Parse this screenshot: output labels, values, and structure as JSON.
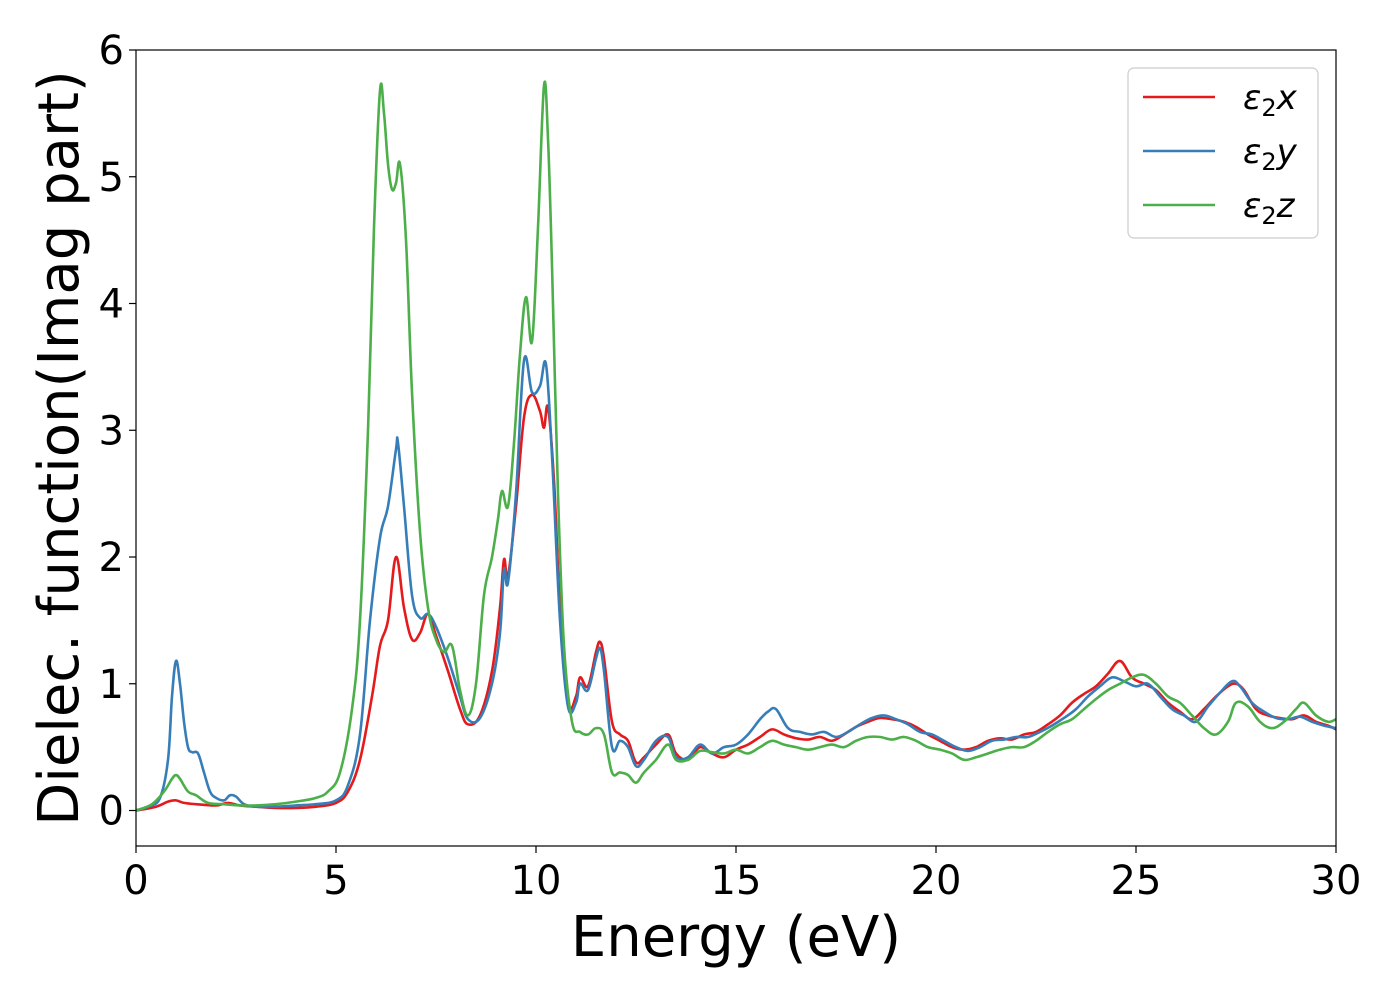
{
  "chart_data": {
    "type": "line",
    "title": "",
    "xlabel": "Energy (eV)",
    "ylabel": "Dielec. function(Imag part)",
    "xlim": [
      0,
      30
    ],
    "ylim": [
      -0.28,
      6.0
    ],
    "xticks": [
      0,
      5,
      10,
      15,
      20,
      25,
      30
    ],
    "yticks": [
      0,
      1,
      2,
      3,
      4,
      5,
      6
    ],
    "xtick_labels": [
      "0",
      "5",
      "10",
      "15",
      "20",
      "25",
      "30"
    ],
    "ytick_labels": [
      "0",
      "1",
      "2",
      "3",
      "4",
      "5",
      "6"
    ],
    "grid": false,
    "legend": {
      "position": "top-right"
    },
    "series": [
      {
        "name": "ε₂x",
        "name_base": "ε",
        "name_sub": "2",
        "name_var": "x",
        "color": "#e41a1c",
        "x": [
          0,
          0.5,
          0.8,
          1.0,
          1.2,
          1.5,
          2.0,
          2.3,
          2.6,
          3.0,
          3.5,
          4.0,
          4.5,
          5.0,
          5.3,
          5.6,
          5.9,
          6.1,
          6.3,
          6.5,
          6.7,
          6.9,
          7.1,
          7.3,
          7.5,
          7.8,
          8.1,
          8.3,
          8.6,
          8.9,
          9.1,
          9.2,
          9.3,
          9.5,
          9.7,
          9.9,
          10.1,
          10.2,
          10.3,
          10.45,
          10.6,
          10.8,
          11.0,
          11.1,
          11.3,
          11.5,
          11.6,
          11.7,
          11.9,
          12.1,
          12.3,
          12.5,
          12.7,
          13.0,
          13.3,
          13.5,
          13.8,
          14.1,
          14.4,
          14.7,
          15.0,
          15.3,
          15.6,
          15.9,
          16.2,
          16.5,
          16.8,
          17.1,
          17.4,
          17.7,
          18.0,
          18.3,
          18.6,
          18.9,
          19.2,
          19.5,
          19.8,
          20.1,
          20.4,
          20.7,
          21.0,
          21.3,
          21.6,
          21.9,
          22.2,
          22.5,
          22.8,
          23.1,
          23.4,
          23.7,
          24.0,
          24.3,
          24.6,
          24.9,
          25.2,
          25.5,
          25.8,
          26.1,
          26.4,
          26.7,
          27.0,
          27.3,
          27.5,
          27.7,
          28.0,
          28.3,
          28.6,
          28.9,
          29.2,
          29.5,
          29.8,
          30.0
        ],
        "values": [
          0.0,
          0.03,
          0.07,
          0.08,
          0.06,
          0.05,
          0.04,
          0.06,
          0.04,
          0.03,
          0.02,
          0.02,
          0.03,
          0.06,
          0.15,
          0.4,
          0.9,
          1.3,
          1.5,
          2.0,
          1.6,
          1.35,
          1.4,
          1.55,
          1.38,
          1.1,
          0.8,
          0.68,
          0.75,
          1.1,
          1.6,
          1.98,
          1.85,
          2.4,
          3.1,
          3.28,
          3.15,
          3.02,
          3.18,
          2.6,
          1.6,
          0.85,
          0.9,
          1.05,
          0.98,
          1.25,
          1.33,
          1.2,
          0.7,
          0.6,
          0.55,
          0.38,
          0.42,
          0.52,
          0.6,
          0.45,
          0.4,
          0.5,
          0.45,
          0.42,
          0.48,
          0.52,
          0.58,
          0.64,
          0.6,
          0.57,
          0.56,
          0.58,
          0.55,
          0.6,
          0.66,
          0.7,
          0.73,
          0.72,
          0.7,
          0.66,
          0.6,
          0.55,
          0.5,
          0.48,
          0.5,
          0.55,
          0.57,
          0.56,
          0.6,
          0.62,
          0.68,
          0.75,
          0.85,
          0.92,
          0.98,
          1.08,
          1.18,
          1.05,
          1.0,
          0.95,
          0.85,
          0.78,
          0.72,
          0.8,
          0.9,
          0.98,
          1.0,
          0.95,
          0.8,
          0.75,
          0.73,
          0.72,
          0.75,
          0.7,
          0.67,
          0.64
        ]
      },
      {
        "name": "ε₂y",
        "name_base": "ε",
        "name_sub": "2",
        "name_var": "y",
        "color": "#377eb8",
        "x": [
          0,
          0.3,
          0.6,
          0.8,
          0.9,
          1.0,
          1.1,
          1.2,
          1.3,
          1.4,
          1.55,
          1.7,
          1.85,
          2.0,
          2.2,
          2.35,
          2.5,
          2.7,
          3.0,
          3.5,
          4.0,
          4.5,
          5.0,
          5.3,
          5.6,
          5.85,
          6.1,
          6.3,
          6.5,
          6.55,
          6.7,
          6.9,
          7.1,
          7.3,
          7.5,
          7.8,
          8.1,
          8.3,
          8.6,
          8.9,
          9.1,
          9.2,
          9.3,
          9.5,
          9.7,
          9.9,
          10.1,
          10.25,
          10.4,
          10.6,
          10.8,
          11.0,
          11.1,
          11.3,
          11.5,
          11.6,
          11.7,
          11.9,
          12.1,
          12.3,
          12.5,
          12.7,
          13.0,
          13.3,
          13.5,
          13.8,
          14.1,
          14.4,
          14.7,
          15.0,
          15.3,
          15.6,
          15.8,
          16.0,
          16.3,
          16.6,
          16.9,
          17.2,
          17.5,
          17.8,
          18.1,
          18.4,
          18.7,
          19.0,
          19.3,
          19.6,
          19.9,
          20.2,
          20.5,
          20.8,
          21.1,
          21.4,
          21.7,
          22.0,
          22.3,
          22.6,
          22.9,
          23.2,
          23.5,
          23.8,
          24.1,
          24.4,
          24.7,
          25.0,
          25.3,
          25.6,
          25.9,
          26.2,
          26.5,
          26.8,
          27.1,
          27.4,
          27.6,
          27.9,
          28.2,
          28.5,
          28.8,
          29.1,
          29.4,
          29.7,
          30.0
        ],
        "values": [
          0.0,
          0.03,
          0.1,
          0.4,
          0.9,
          1.18,
          1.0,
          0.7,
          0.5,
          0.46,
          0.45,
          0.3,
          0.15,
          0.1,
          0.08,
          0.12,
          0.11,
          0.05,
          0.03,
          0.03,
          0.04,
          0.05,
          0.08,
          0.2,
          0.6,
          1.5,
          2.15,
          2.4,
          2.85,
          2.9,
          2.4,
          1.7,
          1.52,
          1.55,
          1.45,
          1.2,
          0.9,
          0.72,
          0.73,
          1.0,
          1.4,
          1.9,
          1.8,
          2.5,
          3.55,
          3.3,
          3.35,
          3.52,
          2.8,
          1.5,
          0.82,
          0.85,
          1.0,
          0.95,
          1.2,
          1.28,
          1.1,
          0.5,
          0.55,
          0.5,
          0.35,
          0.4,
          0.55,
          0.58,
          0.42,
          0.42,
          0.52,
          0.45,
          0.5,
          0.52,
          0.6,
          0.72,
          0.78,
          0.8,
          0.65,
          0.62,
          0.6,
          0.62,
          0.58,
          0.62,
          0.68,
          0.73,
          0.75,
          0.72,
          0.68,
          0.62,
          0.6,
          0.55,
          0.5,
          0.47,
          0.5,
          0.55,
          0.56,
          0.58,
          0.58,
          0.62,
          0.67,
          0.73,
          0.8,
          0.9,
          0.98,
          1.05,
          1.02,
          0.98,
          1.0,
          0.9,
          0.8,
          0.75,
          0.7,
          0.82,
          0.93,
          1.02,
          0.98,
          0.85,
          0.78,
          0.73,
          0.72,
          0.74,
          0.7,
          0.67,
          0.65
        ]
      },
      {
        "name": "ε₂z",
        "name_base": "ε",
        "name_sub": "2",
        "name_var": "z",
        "color": "#4daf4a",
        "x": [
          0,
          0.4,
          0.7,
          0.9,
          1.0,
          1.1,
          1.3,
          1.5,
          1.8,
          2.2,
          2.6,
          3.0,
          3.5,
          4.0,
          4.5,
          4.8,
          5.1,
          5.4,
          5.6,
          5.8,
          5.95,
          6.1,
          6.2,
          6.3,
          6.4,
          6.5,
          6.6,
          6.75,
          6.9,
          7.1,
          7.3,
          7.5,
          7.7,
          7.9,
          8.1,
          8.3,
          8.5,
          8.7,
          8.9,
          9.05,
          9.15,
          9.3,
          9.45,
          9.6,
          9.75,
          9.9,
          10.05,
          10.2,
          10.3,
          10.4,
          10.55,
          10.7,
          10.9,
          11.1,
          11.3,
          11.5,
          11.7,
          11.9,
          12.1,
          12.3,
          12.5,
          12.7,
          13.0,
          13.3,
          13.5,
          13.8,
          14.1,
          14.4,
          14.7,
          15.0,
          15.3,
          15.6,
          15.9,
          16.2,
          16.5,
          16.8,
          17.1,
          17.4,
          17.7,
          18.0,
          18.3,
          18.6,
          18.9,
          19.2,
          19.5,
          19.8,
          20.1,
          20.4,
          20.7,
          21.0,
          21.3,
          21.6,
          21.9,
          22.2,
          22.5,
          22.8,
          23.1,
          23.4,
          23.7,
          24.0,
          24.3,
          24.6,
          24.9,
          25.2,
          25.5,
          25.8,
          26.1,
          26.4,
          26.7,
          27.0,
          27.3,
          27.5,
          27.8,
          28.1,
          28.4,
          28.7,
          29.0,
          29.2,
          29.5,
          29.8,
          30.0
        ],
        "values": [
          0.0,
          0.05,
          0.15,
          0.25,
          0.28,
          0.25,
          0.15,
          0.12,
          0.06,
          0.05,
          0.04,
          0.04,
          0.05,
          0.07,
          0.1,
          0.15,
          0.3,
          0.8,
          1.5,
          3.0,
          4.6,
          5.68,
          5.5,
          5.1,
          4.9,
          4.95,
          5.1,
          4.5,
          3.3,
          2.2,
          1.6,
          1.35,
          1.25,
          1.3,
          0.95,
          0.75,
          1.0,
          1.7,
          2.0,
          2.3,
          2.52,
          2.4,
          2.9,
          3.6,
          4.05,
          3.7,
          4.6,
          5.72,
          5.3,
          4.3,
          2.5,
          1.3,
          0.7,
          0.62,
          0.6,
          0.65,
          0.6,
          0.3,
          0.3,
          0.28,
          0.22,
          0.3,
          0.4,
          0.52,
          0.4,
          0.4,
          0.47,
          0.46,
          0.45,
          0.48,
          0.45,
          0.5,
          0.55,
          0.52,
          0.5,
          0.48,
          0.5,
          0.52,
          0.5,
          0.55,
          0.58,
          0.58,
          0.56,
          0.58,
          0.55,
          0.5,
          0.48,
          0.45,
          0.4,
          0.42,
          0.45,
          0.48,
          0.5,
          0.5,
          0.55,
          0.62,
          0.68,
          0.72,
          0.8,
          0.88,
          0.95,
          1.0,
          1.05,
          1.07,
          1.0,
          0.9,
          0.85,
          0.75,
          0.65,
          0.6,
          0.7,
          0.85,
          0.82,
          0.7,
          0.65,
          0.7,
          0.8,
          0.85,
          0.75,
          0.7,
          0.72
        ]
      }
    ]
  }
}
